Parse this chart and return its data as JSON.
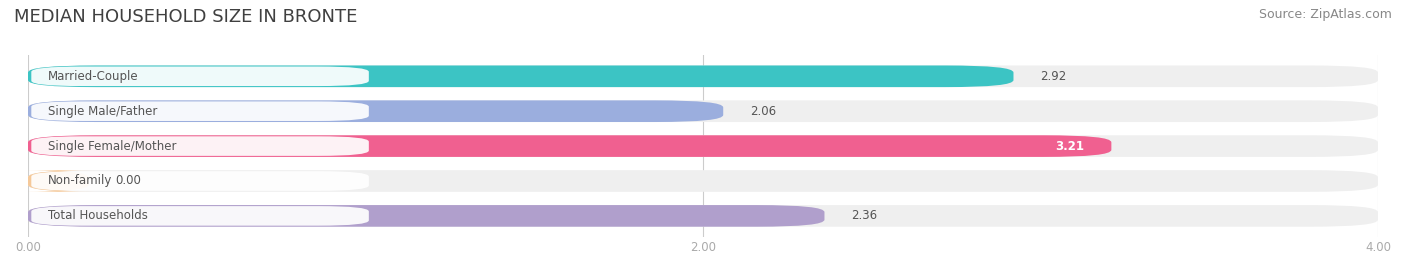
{
  "title": "MEDIAN HOUSEHOLD SIZE IN BRONTE",
  "source": "Source: ZipAtlas.com",
  "categories": [
    "Married-Couple",
    "Single Male/Father",
    "Single Female/Mother",
    "Non-family",
    "Total Households"
  ],
  "values": [
    2.92,
    2.06,
    3.21,
    0.0,
    2.36
  ],
  "bar_colors": [
    "#3cc4c4",
    "#9baede",
    "#f06090",
    "#f5c99a",
    "#b09fcc"
  ],
  "bar_bg_color": "#efefef",
  "xlim": [
    0,
    4.0
  ],
  "xticks": [
    0.0,
    2.0,
    4.0
  ],
  "xtick_labels": [
    "0.00",
    "2.00",
    "4.00"
  ],
  "title_fontsize": 13,
  "source_fontsize": 9,
  "bar_height": 0.62,
  "label_fontsize": 8.5,
  "value_fontsize": 8.5,
  "background_color": "#ffffff",
  "grid_color": "#cccccc",
  "label_box_color": "#ffffff",
  "label_text_color": "#555555",
  "value_text_color": "#555555"
}
